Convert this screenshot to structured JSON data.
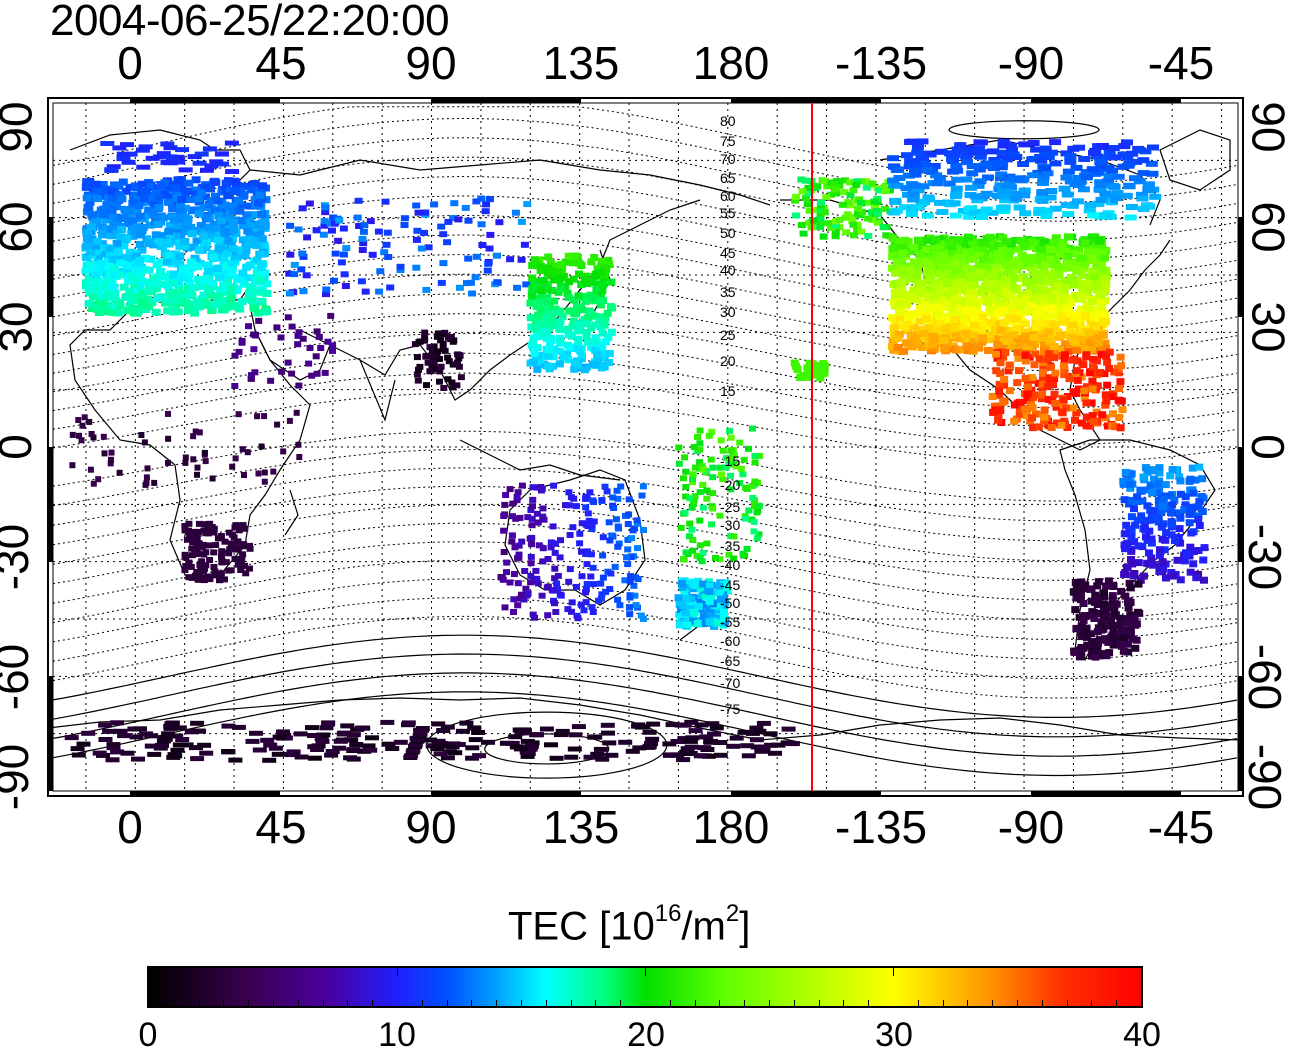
{
  "title": "2004-06-25/22:20:00",
  "top_x_ticks": [
    "0",
    "45",
    "90",
    "135",
    "180",
    "-135",
    "-90",
    "-45"
  ],
  "bottom_x_ticks": [
    "0",
    "45",
    "90",
    "135",
    "180",
    "-135",
    "-90",
    "-45"
  ],
  "left_y_ticks": [
    "90",
    "60",
    "30",
    "0",
    "-30",
    "-60",
    "-90"
  ],
  "right_y_ticks": [
    "90",
    "60",
    "30",
    "0",
    "-30",
    "-60",
    "-90"
  ],
  "contour_labels_north": [
    "80",
    "75",
    "70",
    "65",
    "60",
    "55",
    "50",
    "45",
    "40",
    "35",
    "30",
    "25",
    "20",
    "15"
  ],
  "contour_labels_south": [
    "-15",
    "-20",
    "-25",
    "-30",
    "-35",
    "-40",
    "-45",
    "-50",
    "-55",
    "-60",
    "-65",
    "-70",
    "-75"
  ],
  "colorbar": {
    "label_main": "TEC  [10",
    "label_sup1": "16",
    "label_mid": "/m",
    "label_sup2": "2",
    "label_end": "]",
    "ticks": [
      "0",
      "10",
      "20",
      "30",
      "40"
    ],
    "min": 0,
    "max": 40
  },
  "map": {
    "projection": "cylindrical",
    "lon_range": [
      -25,
      335
    ],
    "lat_range": [
      -90,
      90
    ],
    "grid_spacing_deg": 15,
    "terminator_longitude": -153,
    "terminator_color": "#ff0000"
  }
}
